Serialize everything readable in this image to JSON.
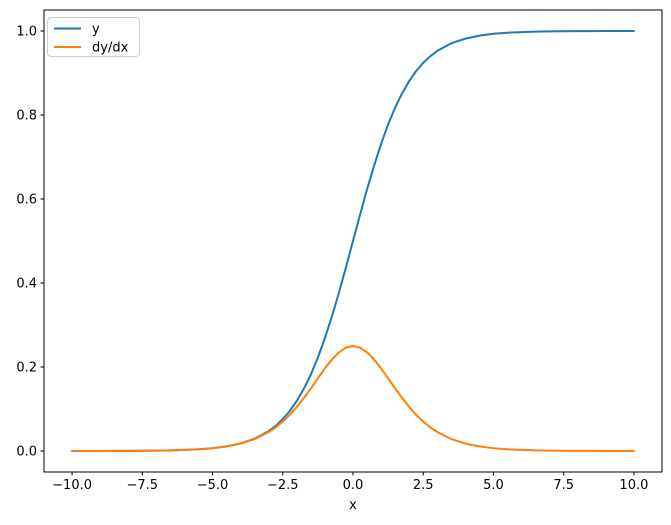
{
  "figure": {
    "background": "#ffffff",
    "frame_color": "#000000",
    "tick_color": "#000000",
    "legend_border_color": "#cccccc",
    "legend_background": "#ffffff"
  },
  "chart_data": {
    "type": "line",
    "title": "",
    "xlabel": "x",
    "ylabel": "",
    "xlim": [
      -11,
      11
    ],
    "ylim": [
      -0.05,
      1.05
    ],
    "grid": false,
    "legend_position": "upper-left",
    "xticks": {
      "values": [
        -10,
        -7.5,
        -5,
        -2.5,
        0,
        2.5,
        5,
        7.5,
        10
      ],
      "labels": [
        "−10.0",
        "−7.5",
        "−5.0",
        "−2.5",
        "0.0",
        "2.5",
        "5.0",
        "7.5",
        "10.0"
      ]
    },
    "yticks": {
      "values": [
        0,
        0.2,
        0.4,
        0.6,
        0.8,
        1.0
      ],
      "labels": [
        "0.0",
        "0.2",
        "0.4",
        "0.6",
        "0.8",
        "1.0"
      ]
    },
    "x": [
      -10,
      -9.5,
      -9,
      -8.5,
      -8,
      -7.5,
      -7,
      -6.5,
      -6,
      -5.5,
      -5,
      -4.5,
      -4,
      -3.5,
      -3,
      -2.75,
      -2.5,
      -2.25,
      -2,
      -1.75,
      -1.5,
      -1.25,
      -1,
      -0.75,
      -0.5,
      -0.25,
      0,
      0.25,
      0.5,
      0.75,
      1,
      1.25,
      1.5,
      1.75,
      2,
      2.25,
      2.5,
      2.75,
      3,
      3.5,
      4,
      4.5,
      5,
      5.5,
      6,
      6.5,
      7,
      7.5,
      8,
      8.5,
      9,
      9.5,
      10
    ],
    "series": [
      {
        "name": "y",
        "color": "#1f77b4",
        "values": [
          0.0,
          0.0001,
          0.0001,
          0.0002,
          0.0003,
          0.0006,
          0.0009,
          0.0015,
          0.0025,
          0.0041,
          0.0067,
          0.011,
          0.018,
          0.0293,
          0.0474,
          0.0601,
          0.0759,
          0.0953,
          0.1192,
          0.148,
          0.1824,
          0.2227,
          0.2689,
          0.3208,
          0.3775,
          0.4378,
          0.5,
          0.5622,
          0.6225,
          0.6792,
          0.7311,
          0.7773,
          0.8176,
          0.852,
          0.8808,
          0.9047,
          0.9241,
          0.9399,
          0.9526,
          0.9707,
          0.982,
          0.989,
          0.9933,
          0.9959,
          0.9975,
          0.9985,
          0.9991,
          0.9994,
          0.9997,
          0.9998,
          0.9999,
          0.9999,
          1.0
        ]
      },
      {
        "name": "dy/dx",
        "color": "#ff7f0e",
        "values": [
          0.0,
          0.0001,
          0.0001,
          0.0002,
          0.0003,
          0.0006,
          0.0009,
          0.0015,
          0.0025,
          0.004,
          0.0066,
          0.0109,
          0.0177,
          0.0284,
          0.0452,
          0.0565,
          0.0701,
          0.0862,
          0.105,
          0.1261,
          0.1491,
          0.1731,
          0.1966,
          0.2179,
          0.235,
          0.2461,
          0.25,
          0.2461,
          0.235,
          0.2179,
          0.1966,
          0.1731,
          0.1491,
          0.1261,
          0.105,
          0.0862,
          0.0701,
          0.0565,
          0.0452,
          0.0284,
          0.0177,
          0.0109,
          0.0066,
          0.004,
          0.0025,
          0.0015,
          0.0009,
          0.0006,
          0.0003,
          0.0002,
          0.0001,
          0.0001,
          0.0
        ]
      }
    ]
  }
}
